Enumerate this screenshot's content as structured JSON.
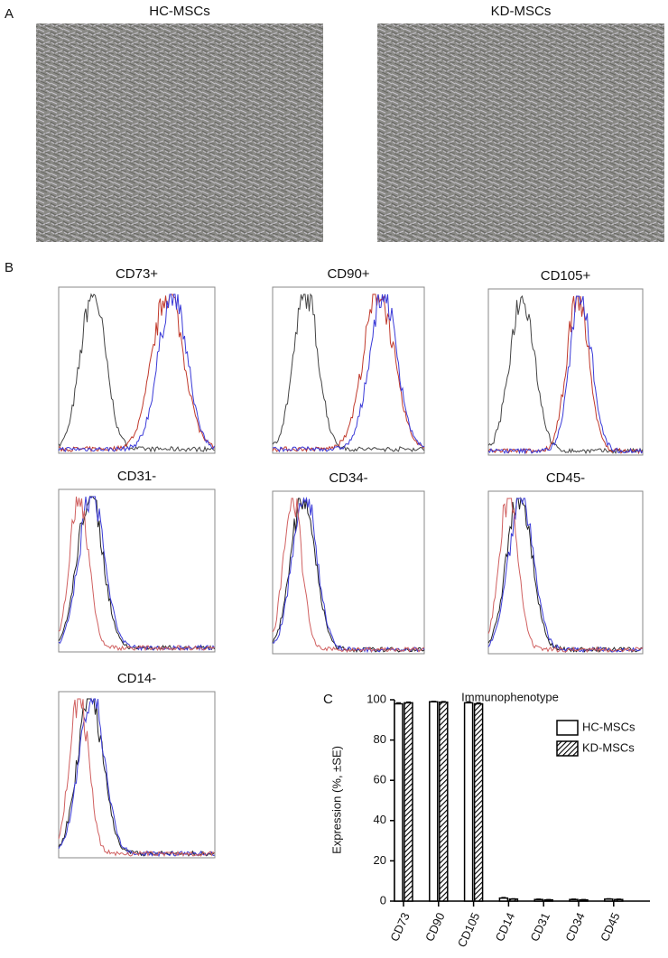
{
  "figure": {
    "panel_labels": [
      "A",
      "B",
      "C"
    ],
    "images": [
      {
        "title": "HC-MSCs"
      },
      {
        "title": "KD-MSCs"
      }
    ],
    "histograms": [
      {
        "title": "CD73+"
      },
      {
        "title": "CD90+"
      },
      {
        "title": "CD105+"
      },
      {
        "title": "CD31-"
      },
      {
        "title": "CD34-"
      },
      {
        "title": "CD45-"
      },
      {
        "title": "CD14-"
      }
    ]
  },
  "chart_data": {
    "type": "bar",
    "title": "Immunophenotype",
    "y_label": "Expression (%, ±SE)",
    "categories": [
      "CD73",
      "CD90",
      "CD105",
      "CD14",
      "CD31",
      "CD34",
      "CD45"
    ],
    "series": [
      {
        "name": "HC-MSCs",
        "color": "#ffffff",
        "values": [
          98,
          99,
          98.5,
          1.5,
          0.8,
          0.8,
          1
        ],
        "errors": [
          0.5,
          0.3,
          0.5,
          0.3,
          0.2,
          0.2,
          0.2
        ]
      },
      {
        "name": "KD-MSCs",
        "color": "hatch",
        "values": [
          98.5,
          98.8,
          98,
          1,
          0.6,
          0.6,
          0.8
        ],
        "errors": [
          0.4,
          0.3,
          0.5,
          0.2,
          0.2,
          0.2,
          0.2
        ]
      }
    ],
    "ylim": [
      0,
      100
    ],
    "yticks": [
      0,
      20,
      40,
      60,
      80,
      100
    ],
    "legend": "upper right"
  }
}
